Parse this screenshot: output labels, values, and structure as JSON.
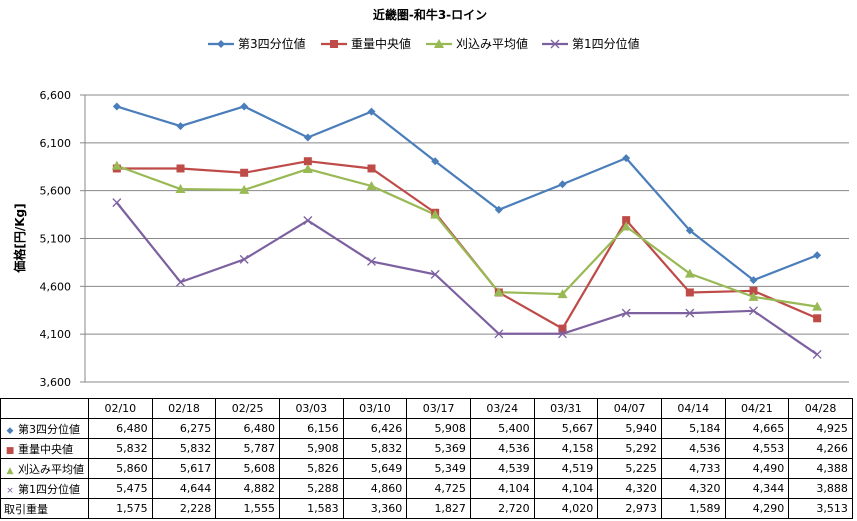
{
  "chart_data": {
    "type": "line",
    "title": "近畿圏-和牛3-ロイン",
    "ylabel": "価格[円/Kg]",
    "xlabel": "",
    "categories": [
      "02/10",
      "02/18",
      "02/25",
      "03/03",
      "03/10",
      "03/17",
      "03/24",
      "03/31",
      "04/07",
      "04/14",
      "04/21",
      "04/28"
    ],
    "ylim": [
      3600,
      6600
    ],
    "yticks": [
      3600,
      4100,
      4600,
      5100,
      5600,
      6100,
      6600
    ],
    "ytick_labels": [
      "3,600",
      "4,100",
      "4,600",
      "5,100",
      "5,600",
      "6,100",
      "6,600"
    ],
    "grid": "horizontal",
    "legend": "top-center",
    "series": [
      {
        "name": "第3四分位値",
        "color": "#4a7ebb",
        "marker": "diamond",
        "marker_glyph": "◆",
        "values": [
          6480,
          6275,
          6480,
          6156,
          6426,
          5908,
          5400,
          5667,
          5940,
          5184,
          4665,
          4925
        ],
        "labels": [
          "6,480",
          "6,275",
          "6,480",
          "6,156",
          "6,426",
          "5,908",
          "5,400",
          "5,667",
          "5,940",
          "5,184",
          "4,665",
          "4,925"
        ]
      },
      {
        "name": "重量中央値",
        "color": "#be4b48",
        "marker": "square",
        "marker_glyph": "■",
        "values": [
          5832,
          5832,
          5787,
          5908,
          5832,
          5369,
          4536,
          4158,
          5292,
          4536,
          4553,
          4266
        ],
        "labels": [
          "5,832",
          "5,832",
          "5,787",
          "5,908",
          "5,832",
          "5,369",
          "4,536",
          "4,158",
          "5,292",
          "4,536",
          "4,553",
          "4,266"
        ]
      },
      {
        "name": "刈込み平均値",
        "color": "#98b954",
        "marker": "triangle",
        "marker_glyph": "▲",
        "values": [
          5860,
          5617,
          5608,
          5826,
          5649,
          5349,
          4539,
          4519,
          5225,
          4733,
          4490,
          4388
        ],
        "labels": [
          "5,860",
          "5,617",
          "5,608",
          "5,826",
          "5,649",
          "5,349",
          "4,539",
          "4,519",
          "5,225",
          "4,733",
          "4,490",
          "4,388"
        ]
      },
      {
        "name": "第1四分位値",
        "color": "#7d60a0",
        "marker": "x",
        "marker_glyph": "×",
        "values": [
          5475,
          4644,
          4882,
          5288,
          4860,
          4725,
          4104,
          4104,
          4320,
          4320,
          4344,
          3888
        ],
        "labels": [
          "5,475",
          "4,644",
          "4,882",
          "5,288",
          "4,860",
          "4,725",
          "4,104",
          "4,104",
          "4,320",
          "4,320",
          "4,344",
          "3,888"
        ]
      }
    ],
    "table_extra_rows": [
      {
        "name": "取引重量",
        "labels": [
          "1,575",
          "2,228",
          "1,555",
          "1,583",
          "3,360",
          "1,827",
          "2,720",
          "4,020",
          "2,973",
          "1,589",
          "4,290",
          "3,513"
        ]
      }
    ]
  }
}
